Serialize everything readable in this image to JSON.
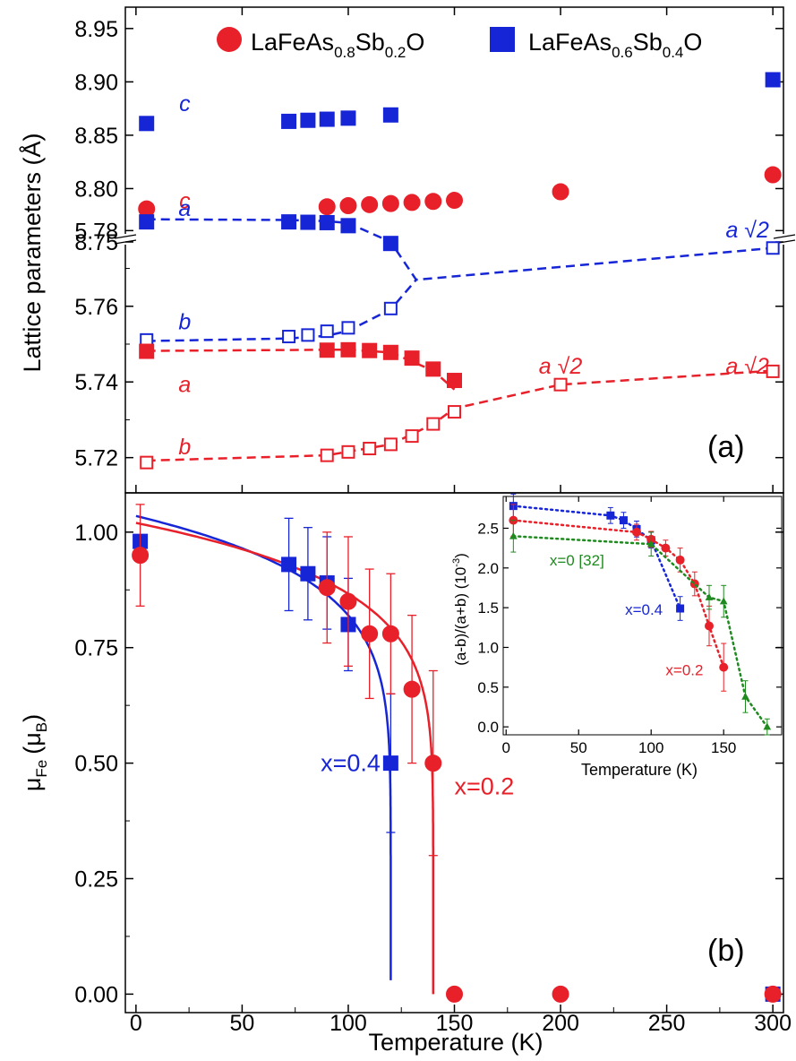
{
  "colors": {
    "red": "#e8202a",
    "blue": "#1626d6",
    "green": "#1f8a1f",
    "axis": "#000000"
  },
  "chart_data": [
    {
      "panel": "a",
      "type": "scatter",
      "ylabel": "Lattice parameters (Å)",
      "panel_label": "(a)",
      "xlim": [
        -5,
        305
      ],
      "ylim_upper": [
        8.75,
        8.97
      ],
      "ylim_lower": [
        5.714,
        5.777
      ],
      "upper_ticks": [
        "8.75",
        "8.80",
        "8.85",
        "8.90",
        "8.95"
      ],
      "lower_ticks": [
        "5.72",
        "5.74",
        "5.76",
        "5.78"
      ],
      "legend": [
        {
          "label_base": "LaFeAs",
          "sub1": "0.8",
          "mid": "Sb",
          "sub2": "0.2",
          "tail": "O",
          "color": "red",
          "marker": "circle"
        },
        {
          "label_base": "LaFeAs",
          "sub1": "0.6",
          "mid": "Sb",
          "sub2": "0.4",
          "tail": "O",
          "color": "blue",
          "marker": "square"
        }
      ],
      "series": [
        {
          "name": "LaFeAs0.6Sb0.4O c",
          "color": "blue",
          "marker": "square",
          "filled": true,
          "axis": "upper",
          "x": [
            5,
            72,
            81,
            90,
            100,
            120,
            300
          ],
          "y": [
            8.861,
            8.863,
            8.864,
            8.865,
            8.866,
            8.869,
            8.902
          ]
        },
        {
          "name": "LaFeAs0.8Sb0.2O c",
          "color": "red",
          "marker": "circle",
          "filled": true,
          "axis": "upper",
          "x": [
            5,
            90,
            100,
            110,
            120,
            130,
            140,
            150,
            200,
            300
          ],
          "y": [
            8.781,
            8.783,
            8.784,
            8.785,
            8.786,
            8.787,
            8.788,
            8.789,
            8.797,
            8.813
          ]
        },
        {
          "name": "LaFeAs0.6Sb0.4O a",
          "color": "blue",
          "marker": "square",
          "filled": true,
          "axis": "lower",
          "x": [
            5,
            72,
            81,
            90,
            100,
            120
          ],
          "y": [
            5.7823,
            5.7823,
            5.7822,
            5.7821,
            5.7813,
            5.7766
          ]
        },
        {
          "name": "LaFeAs0.6Sb0.4O b / a√2",
          "color": "blue",
          "marker": "square",
          "filled": false,
          "axis": "lower",
          "x": [
            5,
            72,
            81,
            90,
            100,
            120,
            300
          ],
          "y": [
            5.7511,
            5.752,
            5.7524,
            5.7534,
            5.7543,
            5.7594,
            5.7754
          ]
        },
        {
          "name": "LaFeAs0.8Sb0.2O a",
          "color": "red",
          "marker": "square",
          "filled": true,
          "axis": "lower",
          "x": [
            5,
            90,
            100,
            110,
            120,
            130,
            140,
            150
          ],
          "y": [
            5.7481,
            5.7484,
            5.7485,
            5.7483,
            5.7478,
            5.7463,
            5.7434,
            5.7404
          ]
        },
        {
          "name": "LaFeAs0.8Sb0.2O b / a√2",
          "color": "red",
          "marker": "square",
          "filled": false,
          "axis": "lower",
          "x": [
            5,
            90,
            100,
            110,
            120,
            130,
            140,
            150,
            200,
            300
          ],
          "y": [
            5.7187,
            5.7206,
            5.7215,
            5.7224,
            5.7235,
            5.7257,
            5.7289,
            5.7321,
            5.7393,
            5.7428
          ]
        }
      ],
      "guides": [
        {
          "color": "blue",
          "x": [
            5,
            72,
            90,
            100,
            120,
            132,
            300
          ],
          "y": [
            5.783,
            5.7828,
            5.7825,
            5.782,
            5.777,
            5.767,
            5.7754
          ]
        },
        {
          "color": "blue",
          "x": [
            5,
            72,
            90,
            100,
            120,
            132
          ],
          "y": [
            5.7508,
            5.7515,
            5.7522,
            5.7535,
            5.7592,
            5.767
          ]
        },
        {
          "color": "red",
          "x": [
            5,
            90,
            100,
            120,
            140,
            150
          ],
          "y": [
            5.7482,
            5.7485,
            5.7485,
            5.7478,
            5.743,
            5.738
          ]
        },
        {
          "color": "red",
          "x": [
            5,
            90,
            120,
            140,
            150,
            200,
            300
          ],
          "y": [
            5.7192,
            5.7206,
            5.7235,
            5.7289,
            5.733,
            5.7393,
            5.743
          ]
        }
      ],
      "annotations": [
        {
          "text": "c",
          "color": "blue",
          "x": 23,
          "y": 8.88,
          "axis": "upper"
        },
        {
          "text": "c",
          "color": "red",
          "x": 23,
          "y": 8.789,
          "axis": "upper"
        },
        {
          "text": "a",
          "color": "blue",
          "x": 23,
          "y": 5.786,
          "axis": "lower"
        },
        {
          "text": "b",
          "color": "blue",
          "x": 23,
          "y": 5.756,
          "axis": "lower"
        },
        {
          "text": "a",
          "color": "red",
          "x": 23,
          "y": 5.7395,
          "axis": "lower"
        },
        {
          "text": "b",
          "color": "red",
          "x": 23,
          "y": 5.723,
          "axis": "lower"
        },
        {
          "text": "a √2",
          "color": "blue",
          "x": 288,
          "y": 5.7803,
          "axis": "lower"
        },
        {
          "text": "a √2",
          "color": "red",
          "x": 200,
          "y": 5.7443,
          "axis": "lower"
        },
        {
          "text": "a √2",
          "color": "red",
          "x": 288,
          "y": 5.7443,
          "axis": "lower"
        }
      ]
    },
    {
      "panel": "b",
      "type": "scatter",
      "xlabel": "Temperature (K)",
      "ylabel_main": "μ",
      "ylabel_sub": "Fe",
      "ylabel_unit": "(μ",
      "ylabel_unit_sub": "B",
      "ylabel_close": ")",
      "panel_label": "(b)",
      "xlim": [
        -5,
        305
      ],
      "ylim": [
        -0.04,
        1.085
      ],
      "xticks": [
        "0",
        "50",
        "100",
        "150",
        "200",
        "250",
        "300"
      ],
      "yticks": [
        "0.00",
        "0.25",
        "0.50",
        "0.75",
        "1.00"
      ],
      "series": [
        {
          "name": "x=0.4",
          "color": "blue",
          "marker": "square",
          "x": [
            2,
            72,
            81,
            90,
            100,
            120,
            300
          ],
          "y": [
            0.98,
            0.93,
            0.91,
            0.89,
            0.8,
            0.5,
            0.0
          ],
          "err": [
            0.0,
            0.1,
            0.1,
            0.1,
            0.1,
            0.15,
            0.0
          ]
        },
        {
          "name": "x=0.2",
          "color": "red",
          "marker": "circle",
          "x": [
            2,
            90,
            100,
            110,
            120,
            130,
            140,
            150,
            200,
            300
          ],
          "y": [
            0.95,
            0.88,
            0.85,
            0.78,
            0.78,
            0.66,
            0.5,
            0.0,
            0.0,
            0.0
          ],
          "err": [
            0.11,
            0.12,
            0.14,
            0.14,
            0.13,
            0.16,
            0.2,
            0.0,
            0.0,
            0.0
          ]
        }
      ],
      "fits": [
        {
          "color": "blue",
          "Tc": 120,
          "A": 1.035,
          "beta": 0.13,
          "ymin": 0.03
        },
        {
          "color": "red",
          "Tc": 140,
          "A": 1.02,
          "beta": 0.13,
          "ymin": 0.0
        }
      ],
      "labels": [
        {
          "text": "x=0.4",
          "color": "blue",
          "x": 87,
          "y": 0.5
        },
        {
          "text": "x=0.2",
          "color": "red",
          "x": 150,
          "y": 0.45
        }
      ]
    },
    {
      "panel": "inset",
      "type": "scatter",
      "xlabel": "Temperature (K)",
      "ylabel_main": "(a-b)/(a+b) (10",
      "ylabel_sup": "-3",
      "ylabel_close": ")",
      "xlim": [
        -2,
        190
      ],
      "ylim": [
        -0.1,
        2.9
      ],
      "xticks": [
        "0",
        "50",
        "100",
        "150"
      ],
      "yticks": [
        "0.0",
        "0.5",
        "1.0",
        "1.5",
        "2.0",
        "2.5"
      ],
      "series": [
        {
          "name": "x=0.4",
          "color": "blue",
          "marker": "square",
          "x": [
            5,
            72,
            81,
            90,
            100,
            120
          ],
          "y": [
            2.78,
            2.66,
            2.6,
            2.49,
            2.35,
            1.49
          ],
          "err": [
            0.15,
            0.1,
            0.1,
            0.1,
            0.1,
            0.15
          ]
        },
        {
          "name": "x=0.2",
          "color": "red",
          "marker": "circle",
          "x": [
            5,
            90,
            100,
            110,
            120,
            130,
            140,
            150
          ],
          "y": [
            2.6,
            2.45,
            2.36,
            2.25,
            2.1,
            1.8,
            1.27,
            0.75
          ],
          "err": [
            0.2,
            0.1,
            0.1,
            0.1,
            0.15,
            0.15,
            0.25,
            0.3
          ]
        },
        {
          "name": "x=0 [32]",
          "color": "green",
          "marker": "triangle",
          "x": [
            5,
            100,
            140,
            150,
            165,
            180
          ],
          "y": [
            2.4,
            2.3,
            1.63,
            1.58,
            0.38,
            0.0
          ],
          "err": [
            0.2,
            0.15,
            0.15,
            0.2,
            0.2,
            0.1
          ]
        }
      ],
      "labels": [
        {
          "text": "x=0 [32]",
          "color": "green",
          "x": 30,
          "y": 2.1
        },
        {
          "text": "x=0.4",
          "color": "blue",
          "x": 82,
          "y": 1.48
        },
        {
          "text": "x=0.2",
          "color": "red",
          "x": 110,
          "y": 0.72
        }
      ]
    }
  ]
}
